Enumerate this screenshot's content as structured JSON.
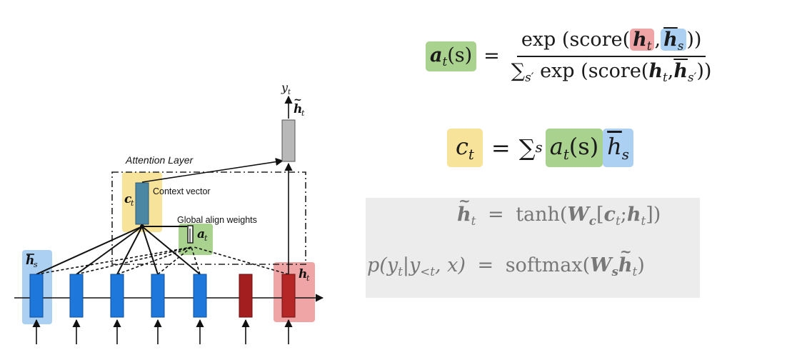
{
  "diagram": {
    "labels": {
      "attention_layer": "Attention Layer",
      "context_vector": "Context vector",
      "global_align_weights": "Global align weights",
      "ct": "c",
      "ct_sub": "t",
      "at": "a",
      "at_sub": "t",
      "yt": "y",
      "yt_sub": "t",
      "htilde": "h",
      "htilde_sub": "t",
      "hs": "h",
      "hs_sub": "s",
      "ht": "h",
      "ht_sub": "t"
    },
    "colors": {
      "encoder_cell": "#1e78dc",
      "decoder_cell": "#a31f1f",
      "context_cell": "#4b86a3",
      "output_cell": "#b8b8b8",
      "highlight_green": "#a9d28f",
      "highlight_red": "#efa5a5",
      "highlight_blue": "#acd0f2",
      "highlight_yellow": "#f7e39a"
    }
  },
  "equations": {
    "eq1": {
      "lhs_a": "a",
      "lhs_sub": "t",
      "lhs_arg": "(s)",
      "equals": "=",
      "num_exp": "exp",
      "num_score": "(score(",
      "num_h": "h",
      "num_h_sub": "t",
      "comma": ",",
      "num_hs": "h",
      "num_hs_sub": "s",
      "num_close": "))",
      "den_sum": "∑",
      "den_sum_sub": "s′",
      "den_exp": "exp",
      "den_score": "(score(",
      "den_h": "h",
      "den_h_sub": "t",
      "den_comma": ",",
      "den_hs": "h",
      "den_hs_sub": "s′",
      "den_close": "))"
    },
    "eq2": {
      "c": "c",
      "c_sub": "t",
      "equals": "=",
      "sum": "∑",
      "sum_sub": "s",
      "a": "a",
      "a_sub": "t",
      "a_arg": "(s)",
      "h": "h",
      "h_sub": "s"
    },
    "eq3": {
      "h": "h",
      "h_sub": "t",
      "equals": "=",
      "tanh": "tanh(",
      "W": "W",
      "W_sub": "c",
      "bracket_open": "[",
      "c": "c",
      "c_sub": "t",
      "semicolon": ";",
      "h2": "h",
      "h2_sub": "t",
      "close": "])"
    },
    "eq4": {
      "p": "p(",
      "y": "y",
      "y_sub": "t",
      "bar": "|",
      "y2": "y",
      "y2_sub": "<t",
      "rest": ", x)",
      "equals": "=",
      "softmax": "softmax(",
      "W": "W",
      "W_sub": "s",
      "h": "h",
      "h_sub": "t",
      "close": ")"
    }
  }
}
